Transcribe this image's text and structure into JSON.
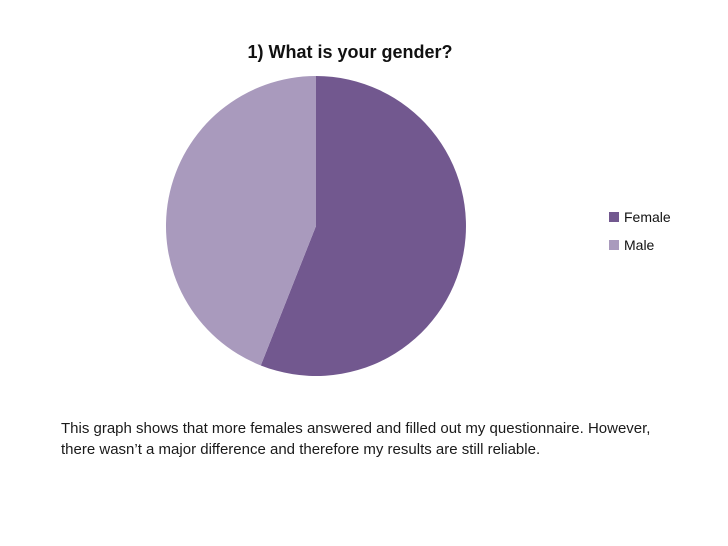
{
  "chart_data": {
    "type": "pie",
    "title": "1) What is your gender?",
    "categories": [
      "Female",
      "Male"
    ],
    "values": [
      56,
      44
    ],
    "colors": [
      "#72588f",
      "#a99abd"
    ],
    "legend_position": "right"
  },
  "caption": "This graph shows that more females answered and filled out my questionnaire. However, there wasn’t a major difference and therefore my results are still reliable."
}
